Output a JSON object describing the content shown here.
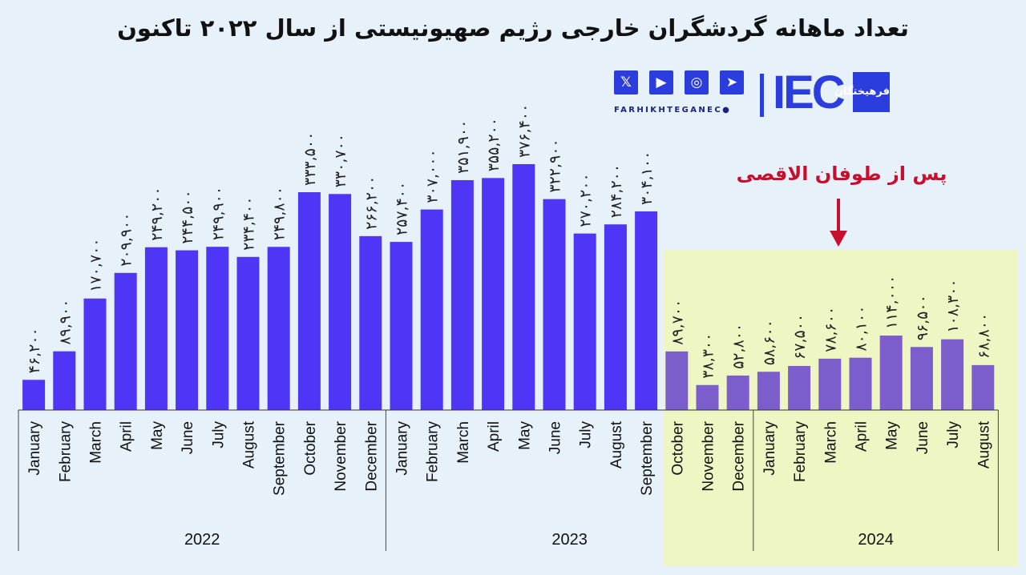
{
  "title": "تعداد ماهانه گردشگران خارجی رژیم صهیونیستی از سال ۲۰۲۲ تاکنون",
  "annotation": {
    "text": "پس از طوفان الاقصی",
    "color": "#c8102e"
  },
  "brand": {
    "url": "FARHIKHTEGANEC●",
    "mark": "IEC",
    "badge": "فرهیختگان",
    "social_icons": [
      "x-icon",
      "youtube-icon",
      "instagram-icon",
      "telegram-icon"
    ]
  },
  "colors": {
    "bar_before": "#4f35f5",
    "bar_after": "#7b5ecb",
    "highlight_bg": "#eef6c4",
    "page_bg": "#e6f1f9"
  },
  "chart_data": {
    "type": "bar",
    "unit": "",
    "ylim": [
      0,
      400000
    ],
    "grid": false,
    "categories": [
      "January",
      "February",
      "March",
      "April",
      "May",
      "June",
      "July",
      "August",
      "September",
      "October",
      "November",
      "December",
      "January",
      "February",
      "March",
      "April",
      "May",
      "June",
      "July",
      "August",
      "September",
      "October",
      "November",
      "December",
      "January",
      "February",
      "March",
      "April",
      "May",
      "June",
      "July",
      "August"
    ],
    "years": [
      {
        "label": "2022",
        "start": 0,
        "end": 11
      },
      {
        "label": "2023",
        "start": 12,
        "end": 20
      },
      {
        "label": "2024",
        "start": 21,
        "end": 31
      }
    ],
    "highlight_from_index": 21,
    "values": [
      46200,
      89900,
      170700,
      209900,
      249200,
      244500,
      249900,
      234400,
      249800,
      333500,
      330700,
      266200,
      257400,
      307000,
      351900,
      355200,
      376400,
      322900,
      270200,
      284200,
      304100,
      89700,
      38300,
      52800,
      58600,
      67500,
      78600,
      80100,
      114000,
      96500,
      108300,
      68800
    ],
    "value_labels": [
      "۴۶,۲۰۰",
      "۸۹,۹۰۰",
      "۱۷۰,۷۰۰",
      "۲۰۹,۹۰۰",
      "۲۴۹,۲۰۰",
      "۲۴۴,۵۰۰",
      "۲۴۹,۹۰۰",
      "۲۳۴,۴۰۰",
      "۲۴۹,۸۰۰",
      "۳۳۳,۵۰۰",
      "۳۳۰,۷۰۰",
      "۲۶۶,۲۰۰",
      "۲۵۷,۴۰۰",
      "۳۰۷,۰۰۰",
      "۳۵۱,۹۰۰",
      "۳۵۵,۲۰۰",
      "۳۷۶,۴۰۰",
      "۳۲۲,۹۰۰",
      "۲۷۰,۲۰۰",
      "۲۸۴,۲۰۰",
      "۳۰۴,۱۰۰",
      "۸۹,۷۰۰",
      "۳۸,۳۰۰",
      "۵۲,۸۰۰",
      "۵۸,۶۰۰",
      "۶۷,۵۰۰",
      "۷۸,۶۰۰",
      "۸۰,۱۰۰",
      "۱۱۴,۰۰۰",
      "۹۶,۵۰۰",
      "۱۰۸,۳۰۰",
      "۶۸,۸۰۰"
    ]
  }
}
